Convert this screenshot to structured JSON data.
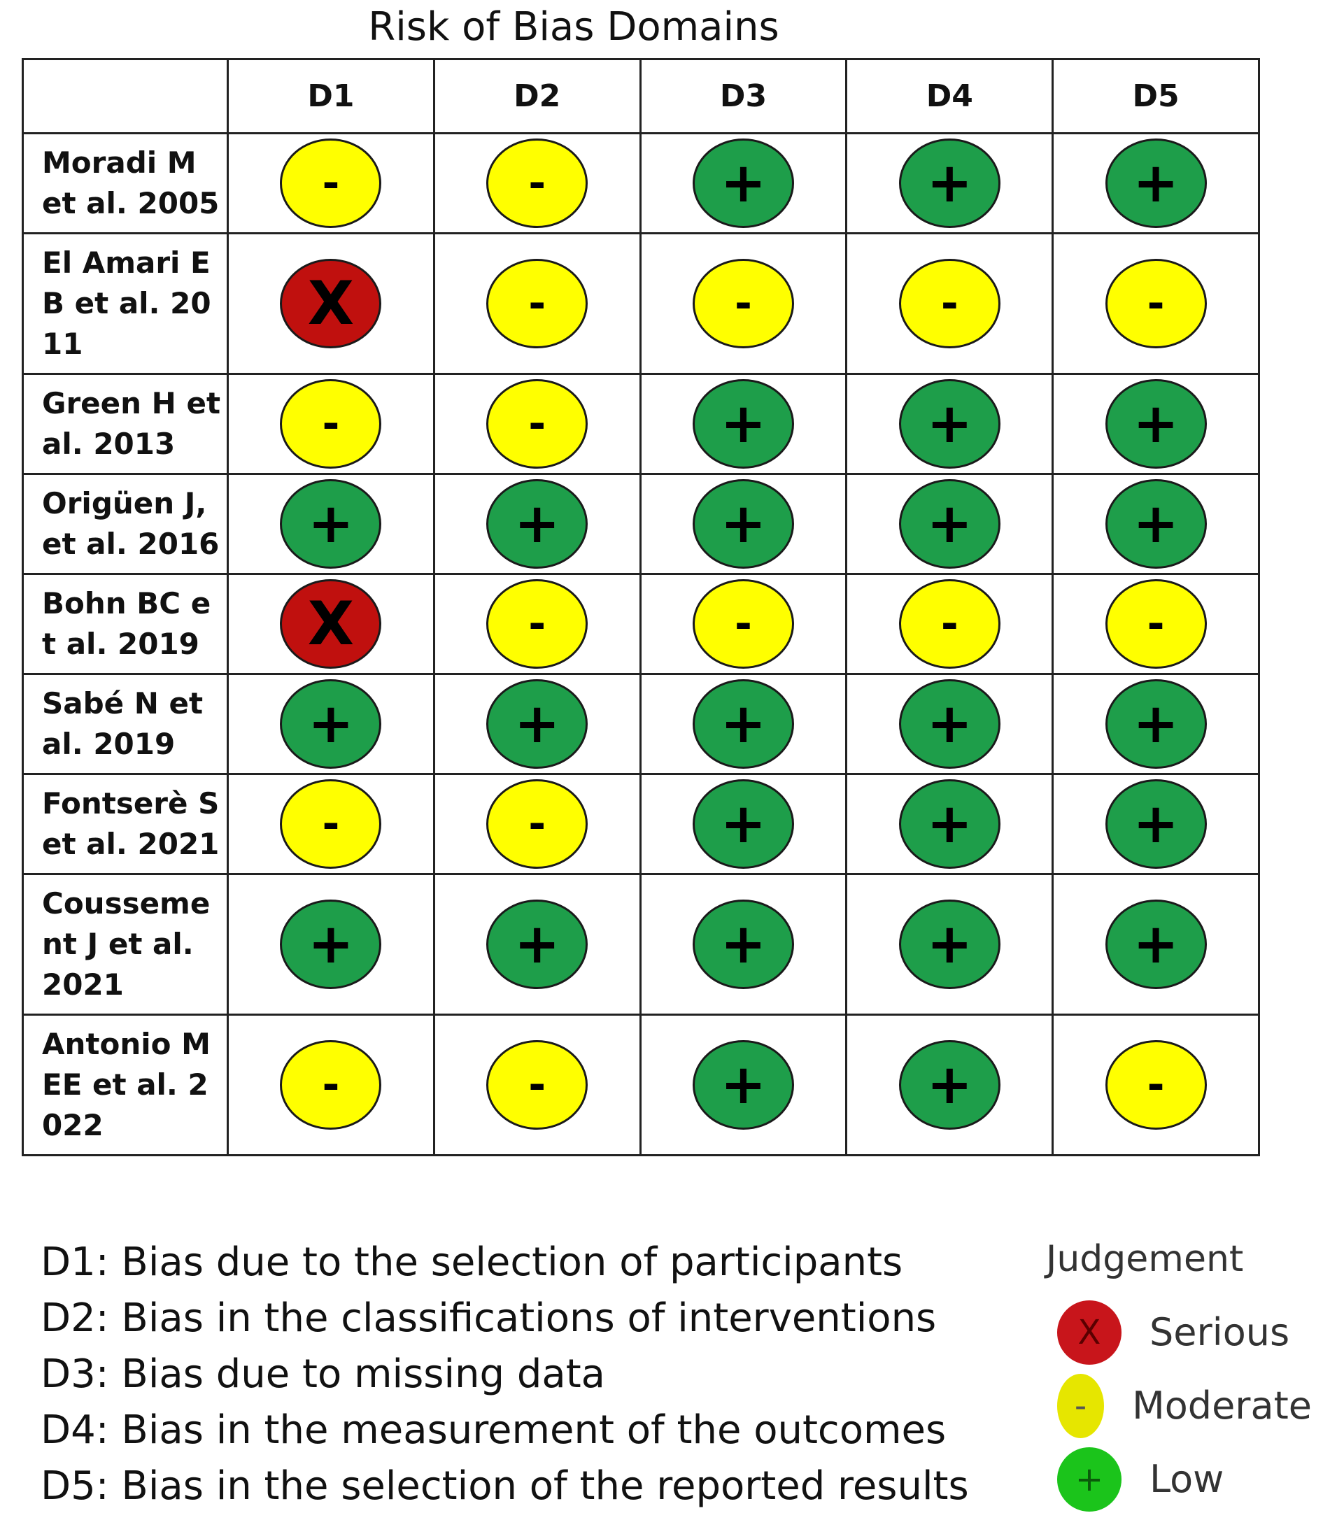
{
  "title": "Risk of Bias Domains",
  "domains": [
    "D1",
    "D2",
    "D3",
    "D4",
    "D5"
  ],
  "studies": [
    {
      "name": "Moradi M et al. 2005",
      "judgements": [
        "moderate",
        "moderate",
        "low",
        "low",
        "low"
      ]
    },
    {
      "name": "El Amari EB et al. 2011",
      "judgements": [
        "serious",
        "moderate",
        "moderate",
        "moderate",
        "moderate"
      ]
    },
    {
      "name": "Green H et al. 2013",
      "judgements": [
        "moderate",
        "moderate",
        "low",
        "low",
        "low"
      ]
    },
    {
      "name": "Origüen J, et al. 2016",
      "judgements": [
        "low",
        "low",
        "low",
        "low",
        "low"
      ]
    },
    {
      "name": "Bohn BC et al. 2019",
      "judgements": [
        "serious",
        "moderate",
        "moderate",
        "moderate",
        "moderate"
      ]
    },
    {
      "name": "Sabé N et al. 2019",
      "judgements": [
        "low",
        "low",
        "low",
        "low",
        "low"
      ]
    },
    {
      "name": "Fontserè S et al. 2021",
      "judgements": [
        "moderate",
        "moderate",
        "low",
        "low",
        "low"
      ]
    },
    {
      "name": "Cousseme nt J et al. 2021",
      "judgements": [
        "low",
        "low",
        "low",
        "low",
        "low"
      ]
    },
    {
      "name": "Antonio MEE et al. 2022",
      "judgements": [
        "moderate",
        "moderate",
        "low",
        "low",
        "moderate"
      ]
    }
  ],
  "symbols": {
    "low": "+",
    "moderate": "-",
    "serious": "X"
  },
  "definitions": [
    "D1: Bias due to the selection of participants",
    "D2: Bias in the classifications of interventions",
    "D3: Bias due to missing data",
    "D4: Bias in the measurement of the outcomes",
    "D5: Bias in the selection of the reported results"
  ],
  "legend": {
    "title": "Judgement",
    "items": [
      {
        "key": "serious",
        "label": "Serious",
        "symbol": "X",
        "icon": "x-circle-icon"
      },
      {
        "key": "moderate",
        "label": "Moderate",
        "symbol": "-",
        "icon": "minus-circle-icon"
      },
      {
        "key": "low",
        "label": "Low",
        "symbol": "+",
        "icon": "plus-circle-icon"
      }
    ]
  },
  "colors": {
    "low": "#1e9e4a",
    "moderate": "#ffff00",
    "serious": "#c0100e"
  }
}
